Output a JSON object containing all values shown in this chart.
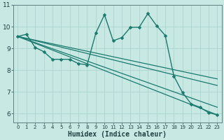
{
  "title": "",
  "xlabel": "Humidex (Indice chaleur)",
  "ylabel": "",
  "xlim": [
    -0.5,
    23.5
  ],
  "ylim": [
    5.6,
    11.0
  ],
  "yticks": [
    6,
    7,
    8,
    9,
    10
  ],
  "ytick_top": 11,
  "xticks": [
    0,
    1,
    2,
    3,
    4,
    5,
    6,
    7,
    8,
    9,
    10,
    11,
    12,
    13,
    14,
    15,
    16,
    17,
    18,
    19,
    20,
    21,
    22,
    23
  ],
  "bg_color": "#c8e8e4",
  "line_color": "#1a7a6e",
  "grid_color": "#a8d0cc",
  "series": [
    {
      "x": [
        0,
        1,
        2,
        3,
        4,
        5,
        6,
        7,
        8,
        9,
        10,
        11,
        12,
        13,
        14,
        15,
        16,
        17,
        18,
        19,
        20,
        21,
        22,
        23
      ],
      "y": [
        9.55,
        9.65,
        9.05,
        8.85,
        8.5,
        8.5,
        8.5,
        8.3,
        8.25,
        9.7,
        10.55,
        9.35,
        9.5,
        9.97,
        9.97,
        10.6,
        10.05,
        9.6,
        7.73,
        6.97,
        6.45,
        6.3,
        6.05,
        5.95
      ],
      "marker": "D",
      "markersize": 2.5,
      "linewidth": 1.0,
      "has_marker": true
    },
    {
      "x": [
        0,
        23
      ],
      "y": [
        9.55,
        7.6
      ],
      "marker": null,
      "markersize": 0,
      "linewidth": 0.9,
      "has_marker": false
    },
    {
      "x": [
        0,
        23
      ],
      "y": [
        9.55,
        7.3
      ],
      "marker": null,
      "markersize": 0,
      "linewidth": 0.9,
      "has_marker": false
    },
    {
      "x": [
        0,
        23
      ],
      "y": [
        9.55,
        6.3
      ],
      "marker": null,
      "markersize": 0,
      "linewidth": 0.9,
      "has_marker": false
    },
    {
      "x": [
        0,
        23
      ],
      "y": [
        9.55,
        5.95
      ],
      "marker": null,
      "markersize": 0,
      "linewidth": 0.9,
      "has_marker": false
    }
  ]
}
